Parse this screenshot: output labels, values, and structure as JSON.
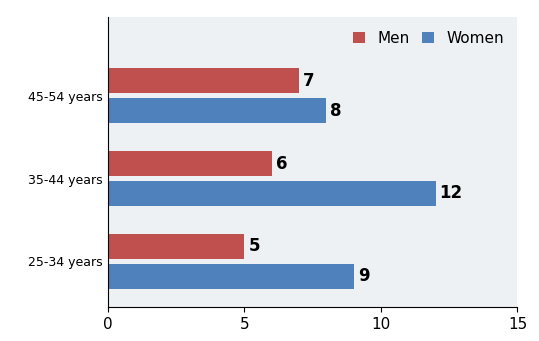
{
  "chart_data": {
    "type": "bar",
    "orientation": "horizontal",
    "categories": [
      "25-34 years",
      "35-44 years",
      "45-54 years"
    ],
    "series": [
      {
        "name": "Men",
        "color": "#c0504d",
        "values": [
          5,
          6,
          7
        ]
      },
      {
        "name": "Women",
        "color": "#4f81bd",
        "values": [
          9,
          12,
          8
        ]
      }
    ],
    "xlim": [
      0,
      15
    ],
    "xticks": [
      0,
      5,
      10,
      15
    ],
    "grid": false,
    "legend": "upper right",
    "data_labels": true
  }
}
